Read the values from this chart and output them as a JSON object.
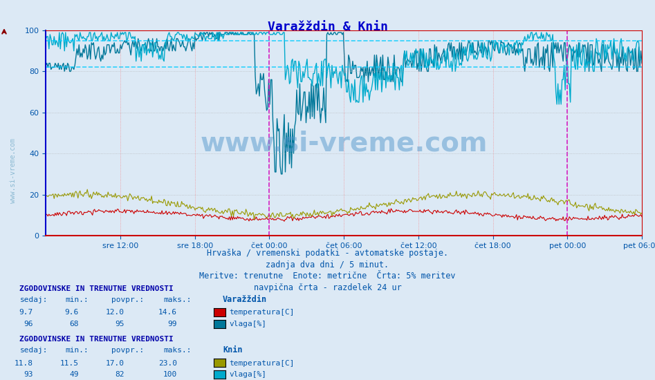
{
  "title": "Varažždin & Knin",
  "title_color": "#0000cc",
  "background_color": "#dce9f5",
  "plot_bg_color": "#dce9f5",
  "ylim": [
    0,
    100
  ],
  "yticks": [
    0,
    20,
    40,
    60,
    80,
    100
  ],
  "xlabel_color": "#0055aa",
  "ylabel_color": "#0055aa",
  "tick_label_color": "#0055aa",
  "watermark": "www.si-vreme.com",
  "watermark_color": "#5599cc",
  "watermark_alpha": 0.5,
  "footer_lines": [
    "Hrvaška / vremenski podatki - avtomatske postaje.",
    "zadnja dva dni / 5 minut.",
    "Meritve: trenutne  Enote: metrične  Črta: 5% meritev",
    "navpična črta - razdelek 24 ur"
  ],
  "footer_color": "#0055aa",
  "footer_fontsize": 9,
  "xtick_labels": [
    "sre 12:00",
    "sre 18:00",
    "čet 00:00",
    "čet 06:00",
    "čet 12:00",
    "čet 18:00",
    "pet 00:00",
    "pet 06:00"
  ],
  "xtick_positions": [
    0.125,
    0.25,
    0.375,
    0.5,
    0.625,
    0.75,
    0.875,
    1.0
  ],
  "n_points": 576,
  "varazdin_temp_color": "#cc0000",
  "varazdin_humid_color": "#007799",
  "knin_temp_color": "#999900",
  "knin_humid_color": "#00aacc",
  "avg_line_color": "#00ccff",
  "avg_varazdin_humid": 95,
  "avg_knin_humid": 82,
  "vline_color": "#cc00cc",
  "vline_positions": [
    0.375,
    0.875
  ],
  "grid_dotted_red_color": "#ff6666",
  "grid_dotted_gray_color": "#aaaaaa",
  "legend_varazdin_label": "Varažždin",
  "legend_knin_label": "Knin",
  "stats_header": "ZGODOVINSKE IN TRENUTNE VREDNOSTI",
  "stats_header_color": "#0000aa",
  "stats_label_color": "#0055aa",
  "varazdin_stats": {
    "sedaj": 9.7,
    "min": 9.6,
    "povpr": 12.0,
    "maks": 14.6
  },
  "varazdin_humid_stats": {
    "sedaj": 96,
    "min": 68,
    "povpr": 95,
    "maks": 99
  },
  "knin_stats": {
    "sedaj": 11.8,
    "min": 11.5,
    "povpr": 17.0,
    "maks": 23.0
  },
  "knin_humid_stats": {
    "sedaj": 93,
    "min": 49,
    "povpr": 82,
    "maks": 100
  },
  "left_axis_color": "#0000cc",
  "bottom_axis_color": "#cc0000"
}
